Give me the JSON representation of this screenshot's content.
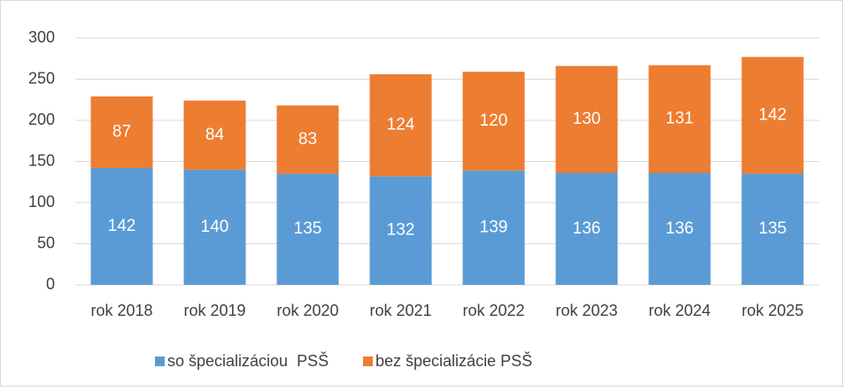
{
  "chart_data": {
    "type": "stacked_bar",
    "categories": [
      "rok 2018",
      "rok 2019",
      "rok 2020",
      "rok 2021",
      "rok 2022",
      "rok 2023",
      "rok 2024",
      "rok 2025"
    ],
    "series": [
      {
        "name": "so špecializáciou  PSŠ",
        "color": "#5b9bd5",
        "values": [
          142,
          140,
          135,
          132,
          139,
          136,
          136,
          135
        ]
      },
      {
        "name": "bez špecializácie PSŠ",
        "color": "#ed7d31",
        "values": [
          87,
          84,
          83,
          124,
          120,
          130,
          131,
          142
        ]
      }
    ],
    "ylim": [
      0,
      300
    ],
    "yticks": [
      0,
      50,
      100,
      150,
      200,
      250,
      300
    ],
    "grid": true,
    "legend": "bottom"
  }
}
